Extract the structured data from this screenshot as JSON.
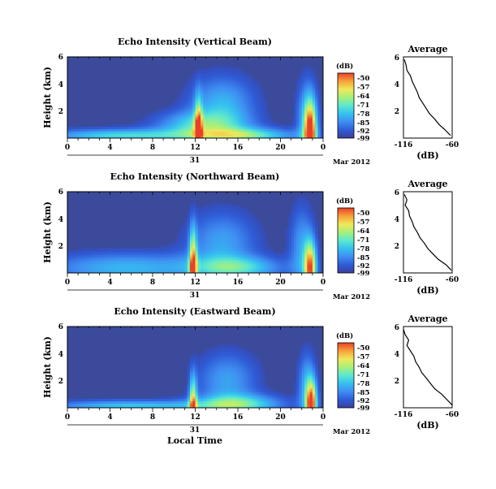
{
  "colors": {
    "background_echo": "#3b4a9a",
    "colormap": [
      "#3b3f9a",
      "#2f5bd6",
      "#3f8ef2",
      "#35c0f0",
      "#5ce8d0",
      "#a6f07a",
      "#f0e85a",
      "#f7a23a",
      "#e8402a"
    ],
    "line": "#000000",
    "nodata": "#ffffff"
  },
  "common": {
    "ylabel": "Height (km)",
    "colorbar_unit": "(dB)",
    "colorbar_ticks": [
      "-50",
      "-57",
      "-64",
      "-71",
      "-78",
      "-85",
      "-92",
      "-99"
    ],
    "x_ticks": [
      "0",
      "4",
      "8",
      "12",
      "16",
      "20",
      "0"
    ],
    "y_ticks": [
      "6",
      "4",
      "2"
    ],
    "day_label": "31",
    "month_label": "Mar 2012",
    "xlabel": "Local Time",
    "avg_title": "Average",
    "avg_xlabel": "(dB)",
    "avg_x_ticks": [
      "-116",
      "-60"
    ],
    "avg_y_ticks": [
      "6",
      "4",
      "2"
    ]
  },
  "chart_data": [
    {
      "type": "heatmap",
      "title": "Echo Intensity (Vertical Beam)",
      "x_range": [
        0,
        24
      ],
      "y_range": [
        0,
        6
      ],
      "color_range": [
        -99,
        -50
      ],
      "blobs": [
        {
          "x": 12.3,
          "y": 0.2,
          "sx": 0.25,
          "sy": 1.8,
          "v": 0.75
        },
        {
          "x": 14.5,
          "y": 2.5,
          "sx": 2.2,
          "sy": 1.5,
          "v": 0.35
        },
        {
          "x": 12.5,
          "y": 1.0,
          "sx": 3.0,
          "sy": 0.7,
          "v": 0.4
        },
        {
          "x": 5.0,
          "y": 0.2,
          "sx": 5.0,
          "sy": 0.35,
          "v": 0.45
        },
        {
          "x": 22.8,
          "y": 0.3,
          "sx": 0.4,
          "sy": 1.6,
          "v": 0.9
        },
        {
          "x": 22.5,
          "y": 1.5,
          "sx": 0.7,
          "sy": 2.0,
          "v": 0.35
        },
        {
          "x": 16.5,
          "y": 0.2,
          "sx": 3.5,
          "sy": 0.4,
          "v": 0.5
        }
      ],
      "average_profile": {
        "height": [
          0.2,
          0.6,
          1.0,
          1.4,
          1.8,
          2.2,
          2.6,
          3.0,
          3.4,
          3.8,
          4.2,
          4.6,
          5.0,
          5.4,
          5.8
        ],
        "db": [
          -62,
          -68,
          -75,
          -80,
          -86,
          -90,
          -94,
          -98,
          -100,
          -103,
          -106,
          -108,
          -112,
          -113,
          -115
        ]
      }
    },
    {
      "type": "heatmap",
      "title": "Echo Intensity (Northward Beam)",
      "x_range": [
        0,
        24
      ],
      "y_range": [
        0,
        6
      ],
      "color_range": [
        -99,
        -50
      ],
      "blobs": [
        {
          "x": 11.8,
          "y": 0.3,
          "sx": 0.25,
          "sy": 2.0,
          "v": 0.8
        },
        {
          "x": 14.5,
          "y": 2.3,
          "sx": 2.3,
          "sy": 1.6,
          "v": 0.3
        },
        {
          "x": 5.5,
          "y": 0.4,
          "sx": 5.5,
          "sy": 0.8,
          "v": 0.35
        },
        {
          "x": 22.8,
          "y": 0.3,
          "sx": 0.4,
          "sy": 1.4,
          "v": 0.85
        },
        {
          "x": 22.0,
          "y": 1.8,
          "sx": 0.8,
          "sy": 2.2,
          "v": 0.3
        },
        {
          "x": 16.0,
          "y": 0.4,
          "sx": 3.0,
          "sy": 0.6,
          "v": 0.4
        }
      ],
      "average_profile": {
        "height": [
          0.2,
          0.6,
          1.0,
          1.4,
          1.8,
          2.2,
          2.6,
          3.0,
          3.4,
          3.8,
          4.2,
          4.6,
          5.0,
          5.4,
          5.8
        ],
        "db": [
          -61,
          -67,
          -76,
          -82,
          -88,
          -92,
          -97,
          -100,
          -104,
          -106,
          -109,
          -110,
          -114,
          -112,
          -115
        ]
      }
    },
    {
      "type": "heatmap",
      "title": "Echo Intensity (Eastward Beam)",
      "x_range": [
        0,
        24
      ],
      "y_range": [
        0,
        6
      ],
      "color_range": [
        -99,
        -50
      ],
      "blobs": [
        {
          "x": 11.8,
          "y": 0.2,
          "sx": 0.25,
          "sy": 1.5,
          "v": 0.7
        },
        {
          "x": 15.0,
          "y": 2.0,
          "sx": 2.0,
          "sy": 1.5,
          "v": 0.3
        },
        {
          "x": 6.0,
          "y": 0.15,
          "sx": 5.5,
          "sy": 0.3,
          "v": 0.4
        },
        {
          "x": 22.9,
          "y": 0.2,
          "sx": 0.35,
          "sy": 1.2,
          "v": 0.9
        },
        {
          "x": 22.5,
          "y": 1.5,
          "sx": 0.6,
          "sy": 1.8,
          "v": 0.35
        },
        {
          "x": 16.0,
          "y": 0.3,
          "sx": 3.0,
          "sy": 0.5,
          "v": 0.45
        }
      ],
      "average_profile": {
        "height": [
          0.2,
          0.6,
          1.0,
          1.4,
          1.8,
          2.2,
          2.6,
          3.0,
          3.4,
          3.8,
          4.2,
          4.6,
          5.0,
          5.4,
          5.8
        ],
        "db": [
          -60,
          -66,
          -72,
          -80,
          -85,
          -90,
          -95,
          -98,
          -102,
          -104,
          -108,
          -112,
          -110,
          -114,
          -116
        ]
      }
    }
  ]
}
